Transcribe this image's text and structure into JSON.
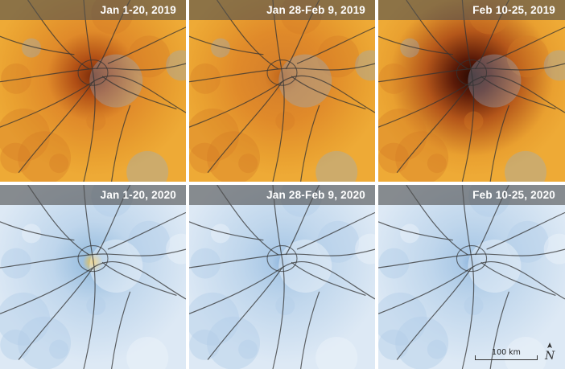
{
  "panels": [
    {
      "label": "Jan 1-20, 2019",
      "year": "2019",
      "level": 0.62
    },
    {
      "label": "Jan 28-Feb 9, 2019",
      "year": "2019",
      "level": 0.45
    },
    {
      "label": "Feb 10-25, 2019",
      "year": "2019",
      "level": 0.95
    },
    {
      "label": "Jan 1-20, 2020",
      "year": "2020",
      "level": 0.35
    },
    {
      "label": "Jan 28-Feb 9, 2020",
      "year": "2020",
      "level": 0.12
    },
    {
      "label": "Feb 10-25, 2020",
      "year": "2020",
      "level": 0.14
    }
  ],
  "scale_bar": {
    "label": "100 km"
  },
  "north_arrow": {
    "label": "N"
  },
  "colors": {
    "high_2019_base": "#e69a2e",
    "hotspot": "#5a1a08",
    "low_2020_base": "#cfe0ef",
    "title_bar": "#5a5a5a"
  }
}
